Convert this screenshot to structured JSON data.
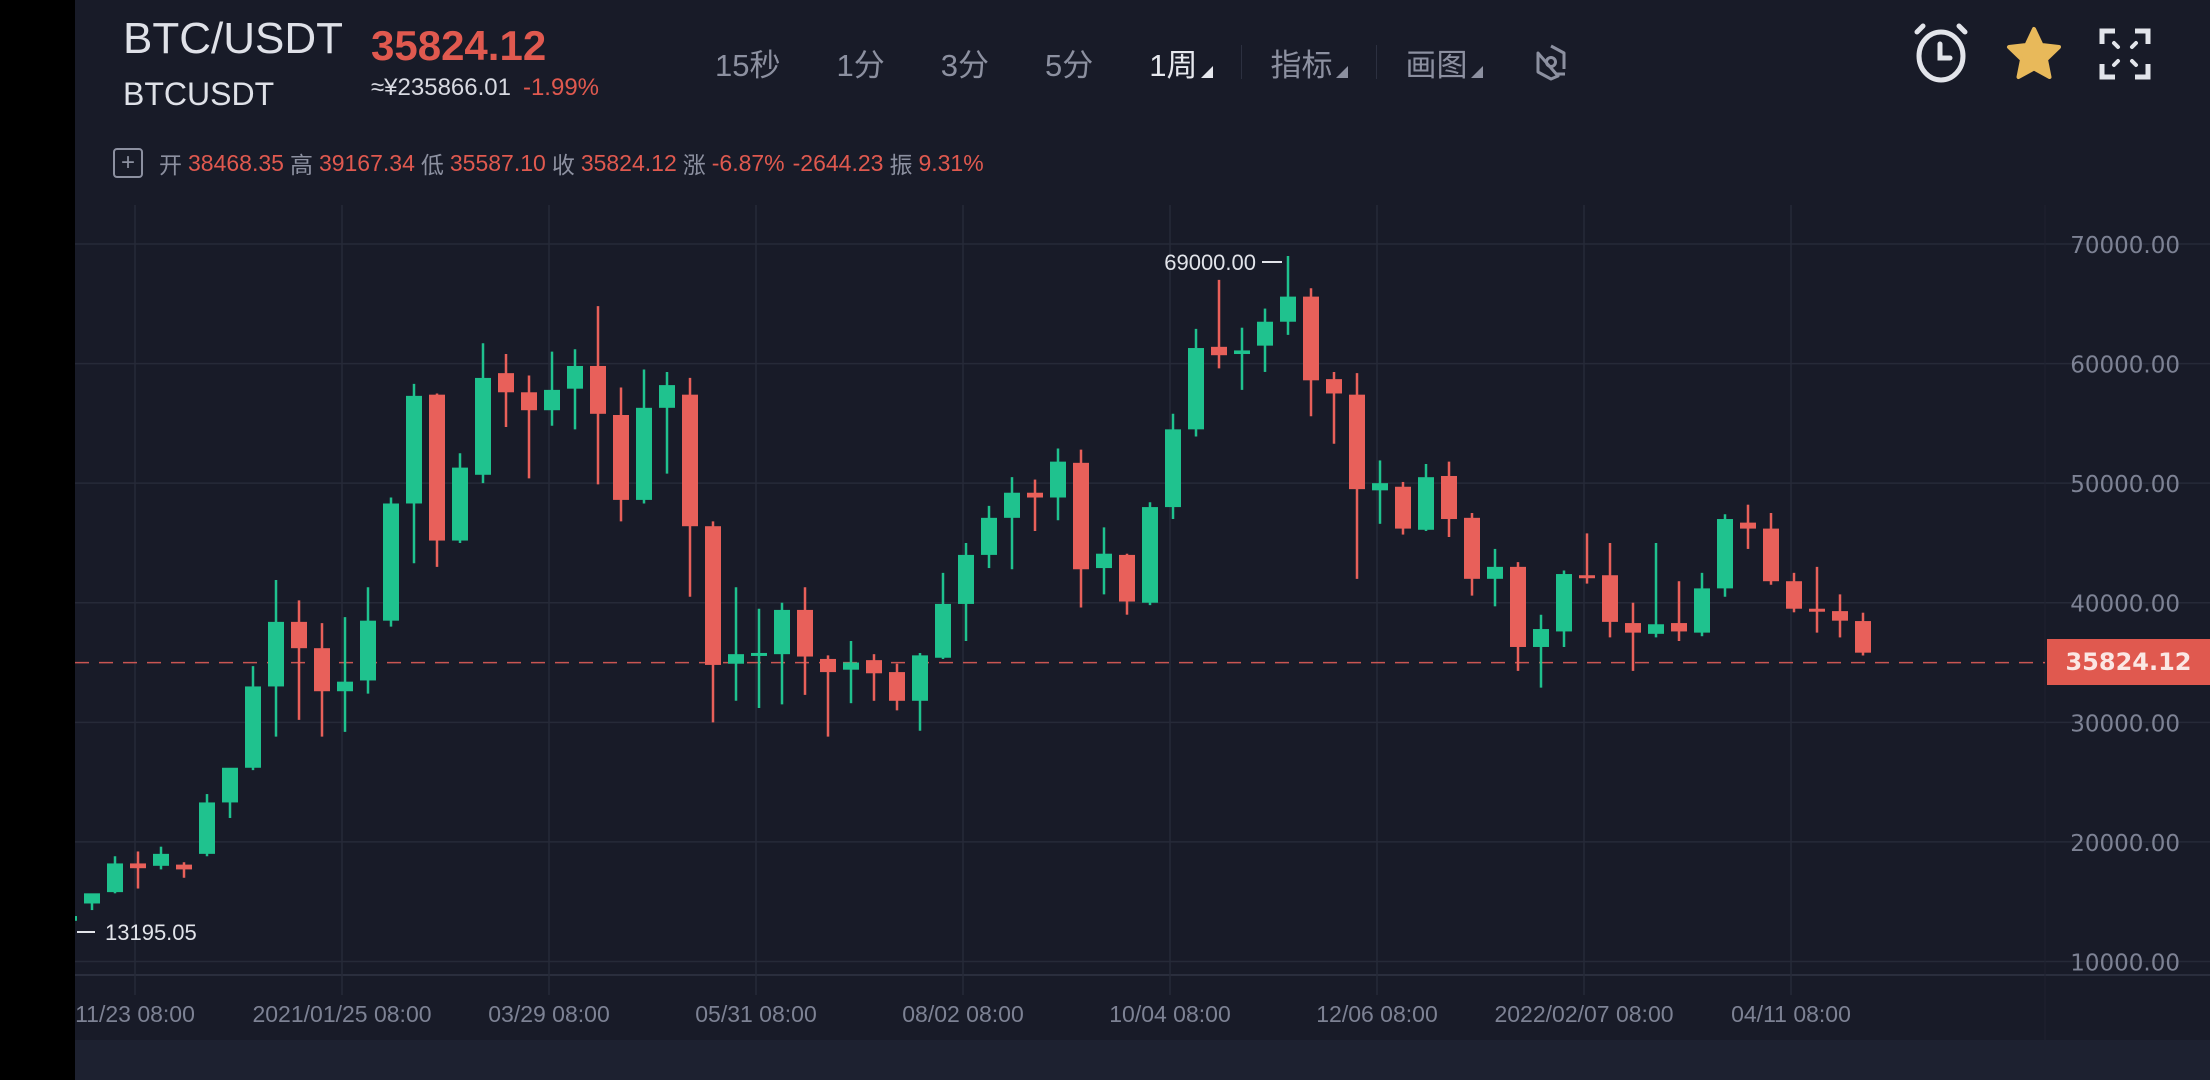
{
  "header": {
    "pair": "BTC/USDT",
    "symbol": "BTCUSDT",
    "last_price": "35824.12",
    "cny_price": "≈¥235866.01",
    "change_pct": "-1.99%"
  },
  "toolbar": {
    "intervals": [
      "15秒",
      "1分",
      "3分",
      "5分"
    ],
    "active_interval": "1周",
    "indicators_label": "指标",
    "drawing_label": "画图",
    "icons": [
      "settings-hex-icon",
      "alarm-clock-icon",
      "star-icon",
      "fullscreen-icon"
    ]
  },
  "ohlc_bar": {
    "open_label": "开",
    "open": "38468.35",
    "high_label": "高",
    "high": "39167.34",
    "low_label": "低",
    "low": "35587.10",
    "close_label": "收",
    "close": "35824.12",
    "change_label": "涨",
    "change_pct": "-6.87%",
    "change_abs": "-2644.23",
    "amplitude_label": "振",
    "amplitude": "9.31%"
  },
  "colors": {
    "background": "#181b28",
    "up": "#1fc28e",
    "down": "#e8605a",
    "grid": "#262a38",
    "axis_text": "#7d8294",
    "accent_star": "#e8b95a"
  },
  "chart_data": {
    "type": "candlestick",
    "title": "BTC/USDT 1周",
    "xlabel": "",
    "ylabel": "",
    "ylim": [
      10000,
      70000
    ],
    "y_ticks": [
      "70000.00",
      "60000.00",
      "50000.00",
      "40000.00",
      "30000.00",
      "20000.00",
      "10000.00"
    ],
    "x_ticks": [
      "11/23 08:00",
      "2021/01/25 08:00",
      "03/29 08:00",
      "05/31 08:00",
      "08/02 08:00",
      "10/04 08:00",
      "12/06 08:00",
      "2022/02/07 08:00",
      "04/11 08:00"
    ],
    "annotations": {
      "max_label": "69000.00",
      "min_label": "13195.05",
      "last_price_line": "35824.12"
    },
    "grid": true,
    "candles": [
      [
        13400,
        14100,
        13195,
        13800
      ],
      [
        14850,
        15300,
        14300,
        15700
      ],
      [
        15800,
        18800,
        15700,
        18200
      ],
      [
        18200,
        19200,
        16100,
        17800
      ],
      [
        18000,
        19600,
        17700,
        19000
      ],
      [
        18100,
        18300,
        17000,
        17700
      ],
      [
        19000,
        24000,
        18800,
        23300
      ],
      [
        23300,
        24600,
        22000,
        26200
      ],
      [
        26200,
        34700,
        26000,
        33000
      ],
      [
        33000,
        41900,
        28800,
        38400
      ],
      [
        38400,
        40200,
        30200,
        36200
      ],
      [
        36200,
        38300,
        28800,
        32600
      ],
      [
        32600,
        38800,
        29200,
        33400
      ],
      [
        33500,
        41300,
        32400,
        38500
      ],
      [
        38500,
        48800,
        38000,
        48300
      ],
      [
        48300,
        58300,
        43300,
        57300
      ],
      [
        57400,
        57500,
        43000,
        45200
      ],
      [
        45200,
        52500,
        45000,
        51300
      ],
      [
        50700,
        61700,
        50000,
        58800
      ],
      [
        59200,
        60800,
        54700,
        57600
      ],
      [
        57600,
        59000,
        50400,
        56100
      ],
      [
        56100,
        61000,
        54800,
        57800
      ],
      [
        57900,
        61200,
        54500,
        59800
      ],
      [
        59800,
        64800,
        49900,
        55800
      ],
      [
        55700,
        58000,
        46800,
        48600
      ],
      [
        48600,
        59500,
        48300,
        56300
      ],
      [
        56300,
        59300,
        50800,
        58200
      ],
      [
        57400,
        58800,
        40500,
        46400
      ],
      [
        46400,
        46800,
        30000,
        34800
      ],
      [
        34900,
        41300,
        31800,
        35700
      ],
      [
        35700,
        39500,
        31200,
        35800
      ],
      [
        35700,
        40000,
        31500,
        39400
      ],
      [
        39400,
        41300,
        32300,
        35500
      ],
      [
        35300,
        35600,
        28800,
        34200
      ],
      [
        34400,
        36800,
        31600,
        35000
      ],
      [
        35200,
        35700,
        31800,
        34100
      ],
      [
        34200,
        34900,
        31000,
        31800
      ],
      [
        31800,
        35800,
        29300,
        35600
      ],
      [
        35400,
        42500,
        35300,
        39900
      ],
      [
        39900,
        45000,
        36800,
        44000
      ],
      [
        44000,
        48100,
        42900,
        47100
      ],
      [
        47100,
        50500,
        42800,
        49200
      ],
      [
        49200,
        50300,
        46000,
        48800
      ],
      [
        48800,
        52900,
        46900,
        51800
      ],
      [
        51700,
        52800,
        39600,
        42800
      ],
      [
        42900,
        46300,
        40700,
        44100
      ],
      [
        44000,
        44100,
        39000,
        40100
      ],
      [
        40000,
        48400,
        39800,
        48000
      ],
      [
        48000,
        55800,
        47000,
        54500
      ],
      [
        54500,
        62900,
        53900,
        61300
      ],
      [
        61400,
        67000,
        59600,
        60700
      ],
      [
        60800,
        63000,
        57800,
        61100
      ],
      [
        61500,
        64600,
        59300,
        63500
      ],
      [
        63500,
        69000,
        62400,
        65600
      ],
      [
        65600,
        66300,
        55600,
        58600
      ],
      [
        58700,
        59300,
        53300,
        57500
      ],
      [
        57400,
        59200,
        42000,
        49500
      ],
      [
        49400,
        51900,
        46600,
        50000
      ],
      [
        49700,
        50100,
        45700,
        46200
      ],
      [
        46100,
        51600,
        46000,
        50500
      ],
      [
        50600,
        51800,
        45500,
        47000
      ],
      [
        47100,
        47500,
        40600,
        42000
      ],
      [
        42000,
        44500,
        39700,
        43000
      ],
      [
        43000,
        43400,
        34300,
        36300
      ],
      [
        36300,
        39000,
        32900,
        37800
      ],
      [
        37600,
        42700,
        36300,
        42400
      ],
      [
        42300,
        45800,
        41600,
        42100
      ],
      [
        42300,
        45000,
        37100,
        38400
      ],
      [
        38300,
        40000,
        34300,
        37500
      ],
      [
        37400,
        45000,
        37100,
        38200
      ],
      [
        38300,
        41800,
        36800,
        37600
      ],
      [
        37500,
        42500,
        37200,
        41200
      ],
      [
        41200,
        47400,
        40500,
        47000
      ],
      [
        46700,
        48200,
        44500,
        46200
      ],
      [
        46200,
        47500,
        41500,
        41800
      ],
      [
        41800,
        42500,
        39200,
        39500
      ],
      [
        39500,
        43000,
        37500,
        39300
      ],
      [
        39300,
        40700,
        37100,
        38500
      ],
      [
        38468.35,
        39167.34,
        35587.1,
        35824.12
      ]
    ]
  }
}
